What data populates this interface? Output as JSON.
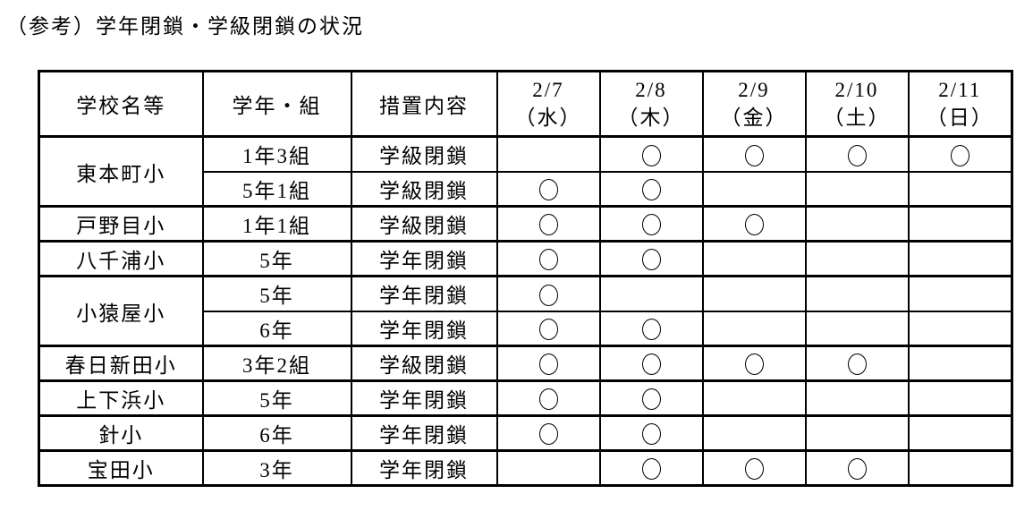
{
  "page": {
    "title": "（参考）学年閉鎖・学級閉鎖の状況"
  },
  "table": {
    "headers": {
      "school": "学校名等",
      "grade": "学年・組",
      "measure": "措置内容",
      "dates": [
        {
          "date": "2/7",
          "day": "（水）"
        },
        {
          "date": "2/8",
          "day": "（木）"
        },
        {
          "date": "2/9",
          "day": "（金）"
        },
        {
          "date": "2/10",
          "day": "（土）"
        },
        {
          "date": "2/11",
          "day": "（日）"
        }
      ]
    },
    "mark_symbol": "○",
    "groups": [
      {
        "school": "東本町小",
        "rows": [
          {
            "grade": "1年3組",
            "measure": "学級閉鎖",
            "marks": [
              false,
              true,
              true,
              true,
              true
            ]
          },
          {
            "grade": "5年1組",
            "measure": "学級閉鎖",
            "marks": [
              true,
              true,
              false,
              false,
              false
            ]
          }
        ]
      },
      {
        "school": "戸野目小",
        "rows": [
          {
            "grade": "1年1組",
            "measure": "学級閉鎖",
            "marks": [
              true,
              true,
              true,
              false,
              false
            ]
          }
        ]
      },
      {
        "school": "八千浦小",
        "rows": [
          {
            "grade": "5年",
            "measure": "学年閉鎖",
            "marks": [
              true,
              true,
              false,
              false,
              false
            ]
          }
        ]
      },
      {
        "school": "小猿屋小",
        "rows": [
          {
            "grade": "5年",
            "measure": "学年閉鎖",
            "marks": [
              true,
              false,
              false,
              false,
              false
            ]
          },
          {
            "grade": "6年",
            "measure": "学年閉鎖",
            "marks": [
              true,
              true,
              false,
              false,
              false
            ]
          }
        ]
      },
      {
        "school": "春日新田小",
        "rows": [
          {
            "grade": "3年2組",
            "measure": "学級閉鎖",
            "marks": [
              true,
              true,
              true,
              true,
              false
            ]
          }
        ]
      },
      {
        "school": "上下浜小",
        "rows": [
          {
            "grade": "5年",
            "measure": "学年閉鎖",
            "marks": [
              true,
              true,
              false,
              false,
              false
            ]
          }
        ]
      },
      {
        "school": "針小",
        "rows": [
          {
            "grade": "6年",
            "measure": "学年閉鎖",
            "marks": [
              true,
              true,
              false,
              false,
              false
            ]
          }
        ]
      },
      {
        "school": "宝田小",
        "rows": [
          {
            "grade": "3年",
            "measure": "学年閉鎖",
            "marks": [
              false,
              true,
              true,
              true,
              false
            ]
          }
        ]
      }
    ]
  },
  "colors": {
    "background": "#ffffff",
    "border": "#000000",
    "text": "#000000"
  }
}
